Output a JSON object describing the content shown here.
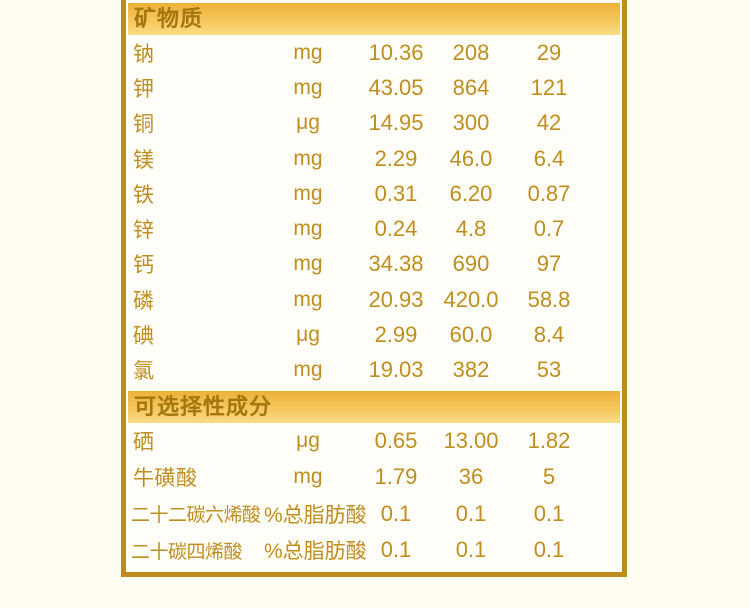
{
  "colors": {
    "page_background": "#fffdf1",
    "panel_background": "#fffef8",
    "border_gold": "#be8c1b",
    "band_gradient_top": "#eeb038",
    "band_gradient_bottom": "#fadc85",
    "band_text": "#a4760f",
    "row_text": "#c08e1f"
  },
  "table": {
    "sections": [
      {
        "id": "minerals",
        "header": "矿物质",
        "rows": [
          {
            "name": "钠",
            "unit": "mg",
            "values": [
              "10.36",
              "208",
              "29"
            ]
          },
          {
            "name": "钾",
            "unit": "mg",
            "values": [
              "43.05",
              "864",
              "121"
            ]
          },
          {
            "name": "铜",
            "unit": "μg",
            "values": [
              "14.95",
              "300",
              "42"
            ]
          },
          {
            "name": "镁",
            "unit": "mg",
            "values": [
              "2.29",
              "46.0",
              "6.4"
            ]
          },
          {
            "name": "铁",
            "unit": "mg",
            "values": [
              "0.31",
              "6.20",
              "0.87"
            ]
          },
          {
            "name": "锌",
            "unit": "mg",
            "values": [
              "0.24",
              "4.8",
              "0.7"
            ]
          },
          {
            "name": "钙",
            "unit": "mg",
            "values": [
              "34.38",
              "690",
              "97"
            ]
          },
          {
            "name": "磷",
            "unit": "mg",
            "values": [
              "20.93",
              "420.0",
              "58.8"
            ]
          },
          {
            "name": "碘",
            "unit": "μg",
            "values": [
              "2.99",
              "60.0",
              "8.4"
            ]
          },
          {
            "name": "氯",
            "unit": "mg",
            "values": [
              "19.03",
              "382",
              "53"
            ]
          }
        ]
      },
      {
        "id": "optional",
        "header": "可选择性成分",
        "rows": [
          {
            "name": "硒",
            "unit": "μg",
            "values": [
              "0.65",
              "13.00",
              "1.82"
            ]
          },
          {
            "name": "牛磺酸",
            "unit": "mg",
            "values": [
              "1.79",
              "36",
              "5"
            ]
          },
          {
            "name": "二十二碳六烯酸",
            "unit": "%总脂肪酸",
            "values": [
              "0.1",
              "0.1",
              "0.1"
            ]
          },
          {
            "name": "二十碳四烯酸",
            "unit": "%总脂肪酸",
            "values": [
              "0.1",
              "0.1",
              "0.1"
            ]
          }
        ]
      }
    ]
  }
}
